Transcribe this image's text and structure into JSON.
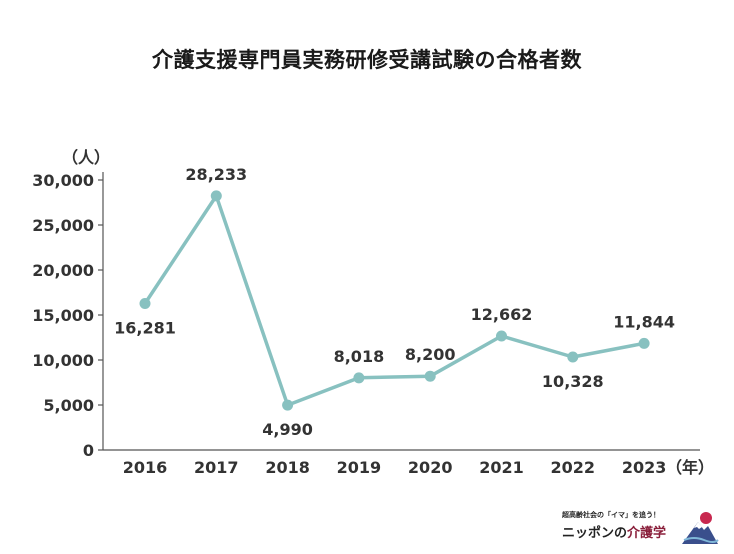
{
  "chart_data": {
    "type": "line",
    "title": "介護支援専門員実務研修受講試験の合格者数",
    "ylabel": "（人）",
    "xlabel": "（年）",
    "categories": [
      "2016",
      "2017",
      "2018",
      "2019",
      "2020",
      "2021",
      "2022",
      "2023"
    ],
    "series": [
      {
        "values": [
          16281,
          28233,
          4990,
          8018,
          8200,
          12662,
          10328,
          11844
        ],
        "data_labels": [
          "16,281",
          "28,233",
          "4,990",
          "8,018",
          "8,200",
          "12,662",
          "10,328",
          "11,844"
        ],
        "label_position": [
          "below",
          "above",
          "below",
          "above",
          "above",
          "above",
          "below",
          "above"
        ]
      }
    ],
    "ylim": [
      0,
      30000
    ],
    "yticks": [
      0,
      5000,
      10000,
      15000,
      20000,
      25000,
      30000
    ],
    "ytick_labels": [
      "0",
      "5,000",
      "10,000",
      "15,000",
      "20,000",
      "25,000",
      "30,000"
    ],
    "grid": false,
    "line_color": "#88c1c0",
    "axis_color": "#555555"
  },
  "logo": {
    "tagline": "超高齢社会の「イマ」を追う！",
    "brand_prefix": "ニッポンの",
    "brand_main": "介護学"
  }
}
